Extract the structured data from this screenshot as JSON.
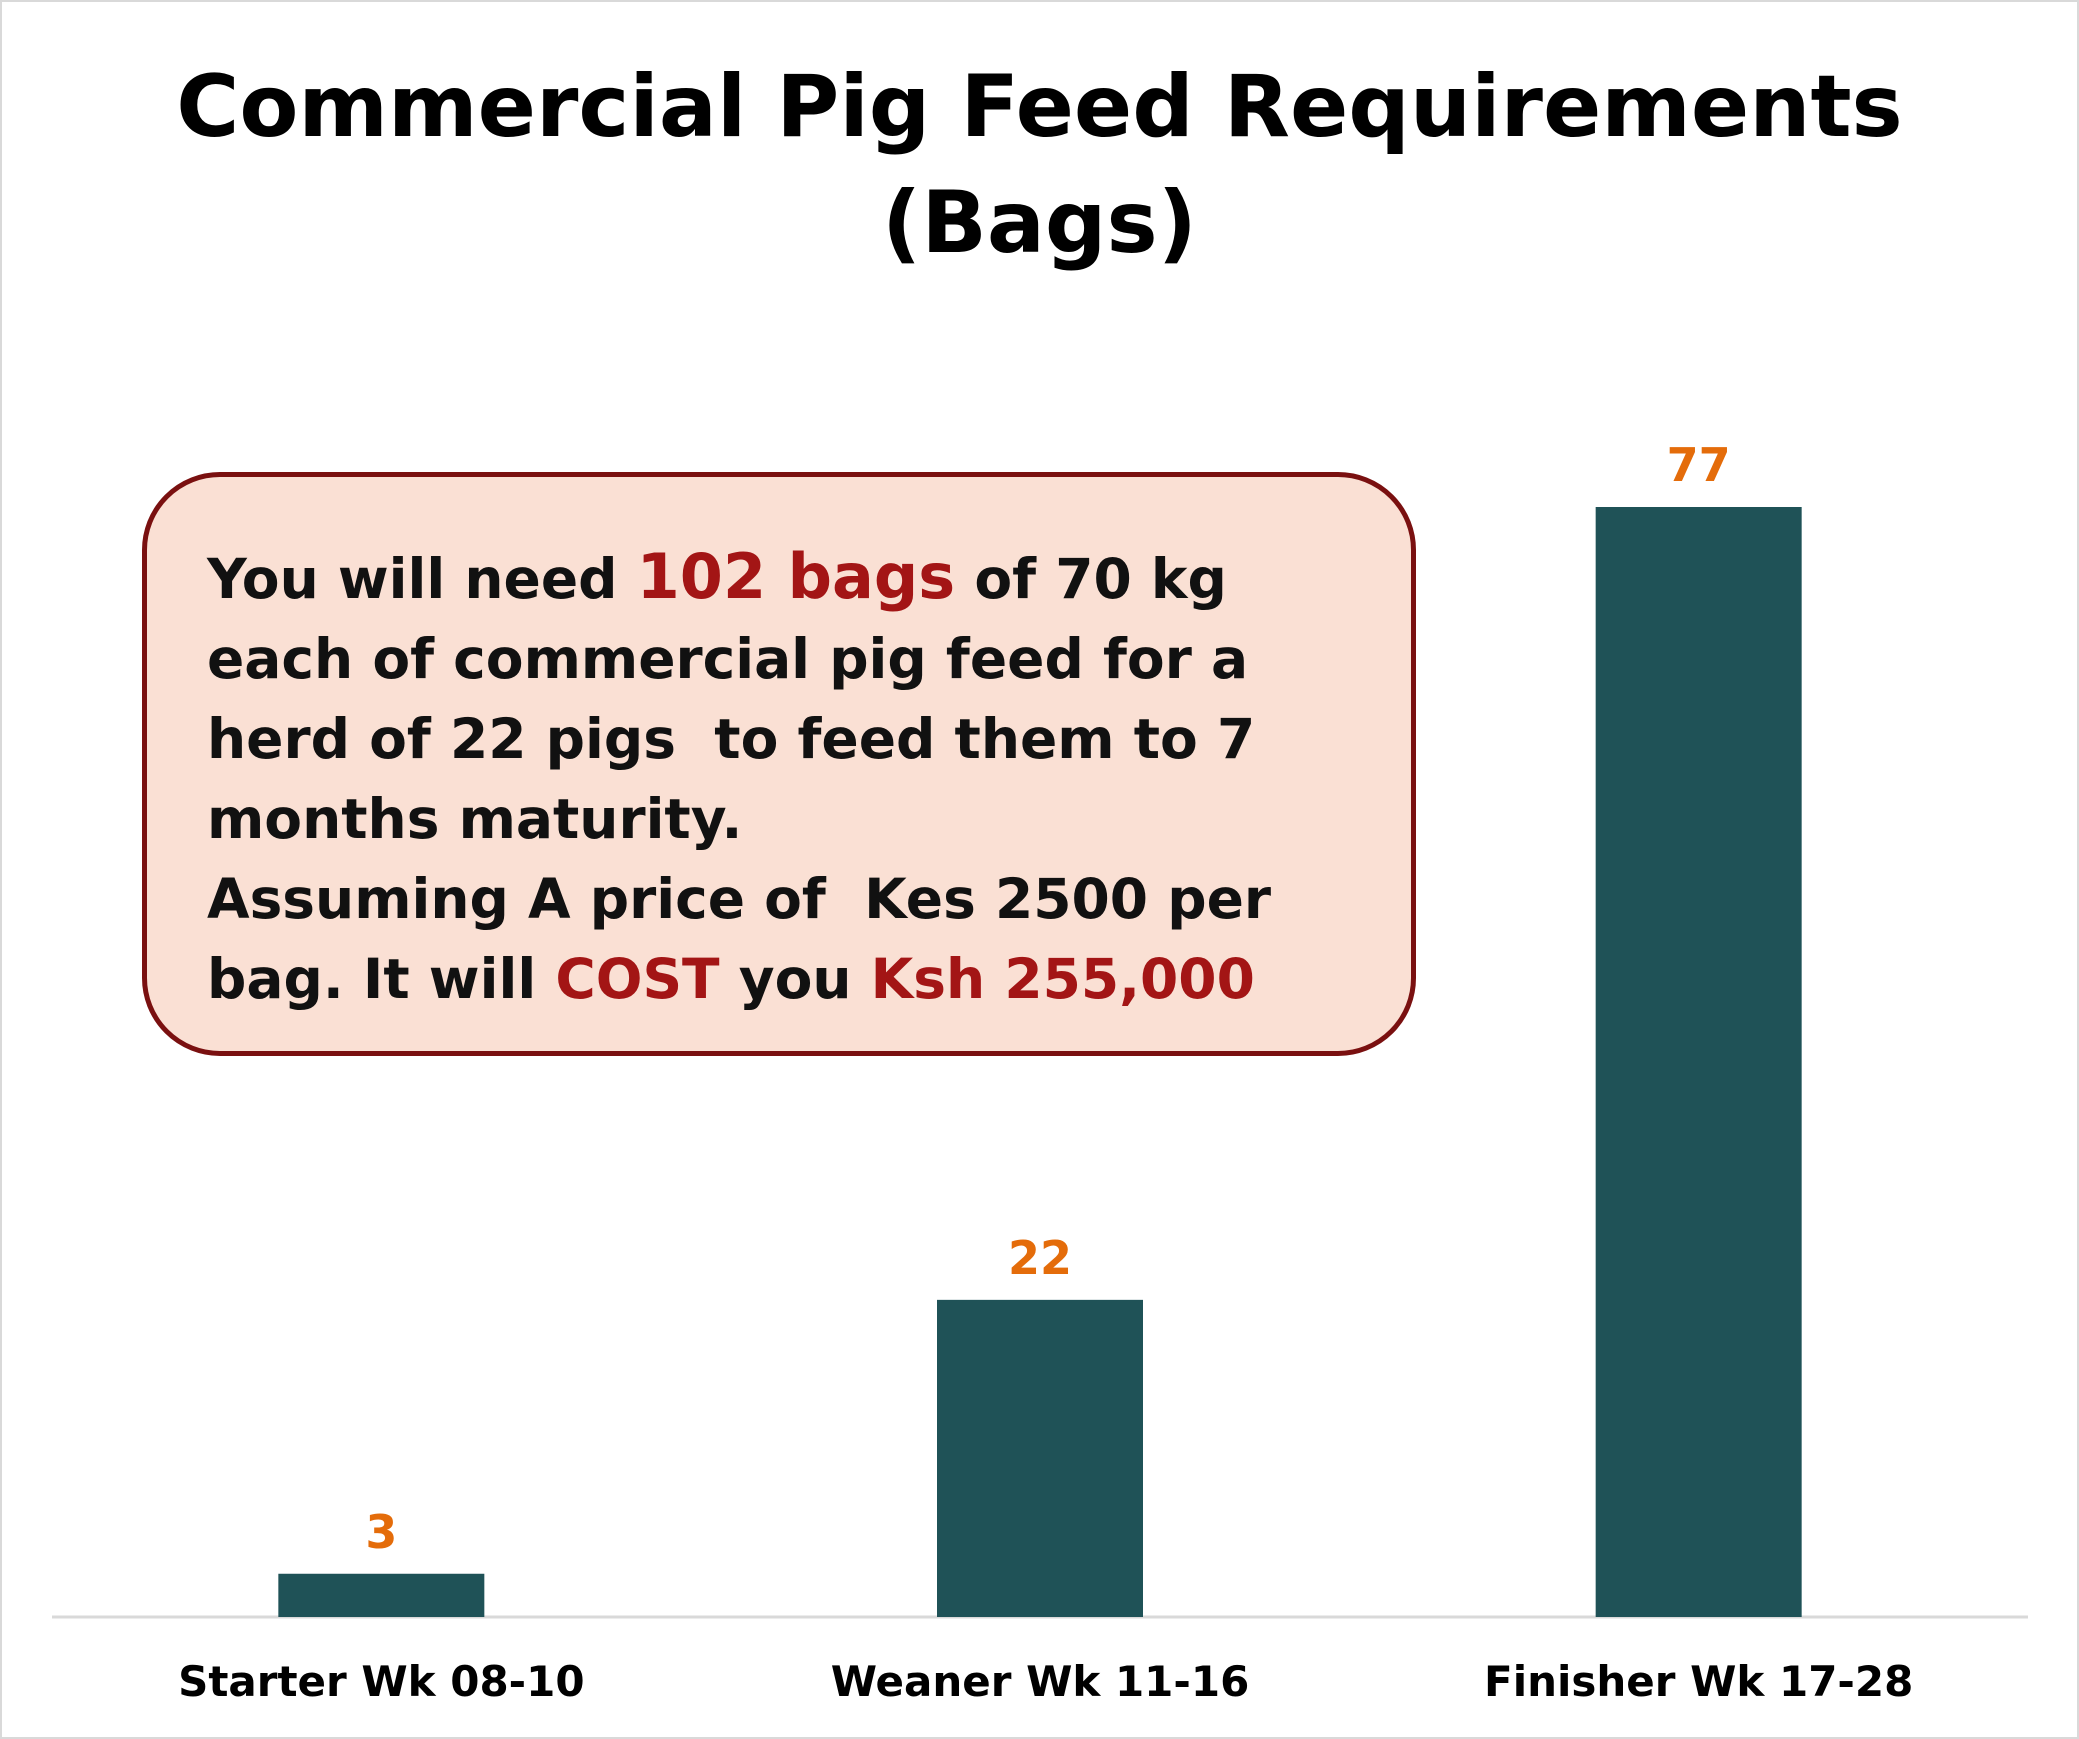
{
  "chart_data": {
    "type": "bar",
    "title": "Commercial Pig Feed Requirements (Bags)",
    "title_lines": [
      "Commercial Pig Feed Requirements",
      "(Bags)"
    ],
    "categories": [
      "Starter Wk 08-10",
      "Weaner Wk 11-16",
      "Finisher Wk 17-28"
    ],
    "values": [
      3,
      22,
      77
    ],
    "data_labels": [
      "3",
      "22",
      "77"
    ],
    "xlabel": "",
    "ylabel": "",
    "ylim": [
      0,
      77
    ],
    "grid": false,
    "legend": "none",
    "bar_color": "#1f5257",
    "label_color": "#e46c0a"
  },
  "callout": {
    "t1": "You will need ",
    "t2": "102 bags",
    "t3": " of 70 kg\neach of commercial pig feed for a\nherd of 22 pigs  to feed them to 7\nmonths maturity.\nAssuming A price of  Kes 2500 per\nbag. It will ",
    "t4": "COST",
    "t5": " you ",
    "t6": "Ksh 255,000",
    "highlight_color": "#a31515",
    "background": "#fae0d4",
    "border_color": "#7a1010"
  }
}
